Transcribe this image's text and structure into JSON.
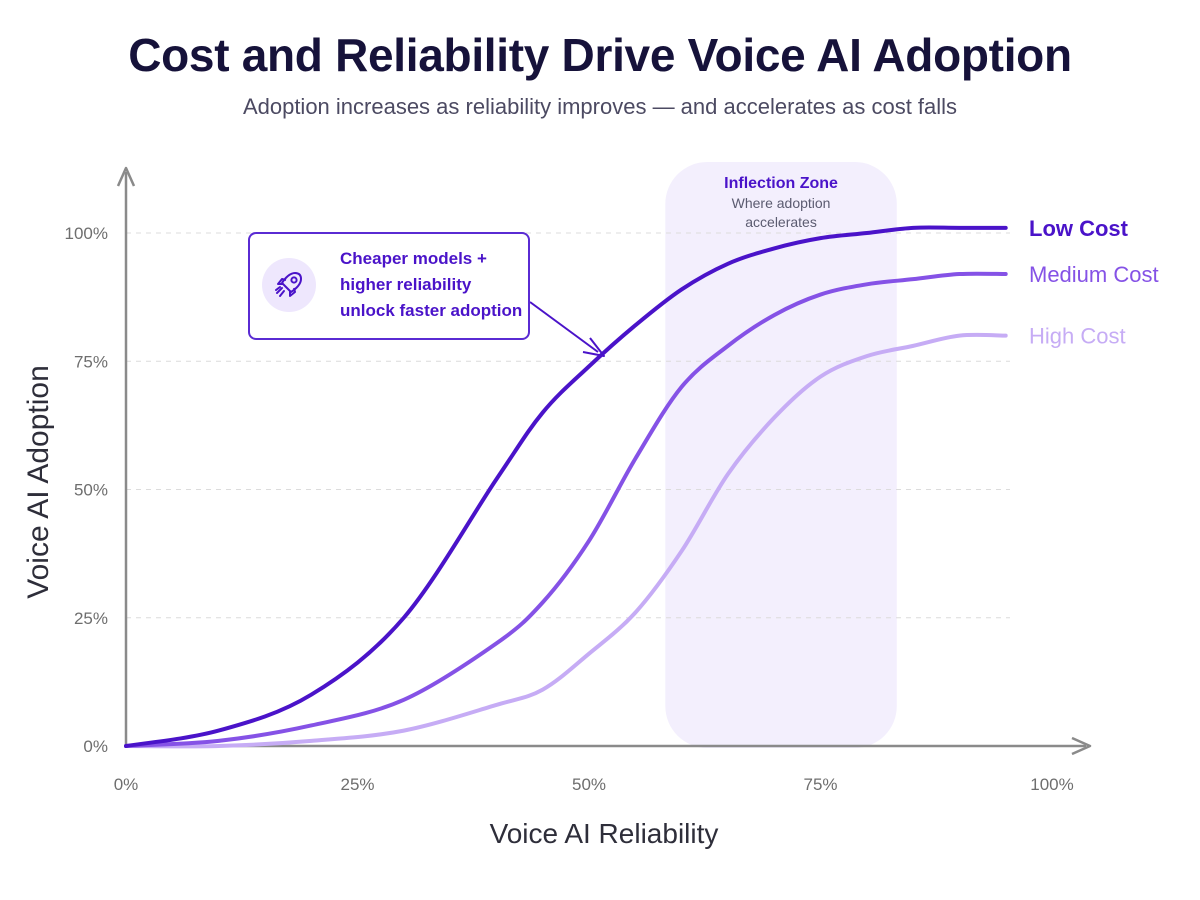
{
  "header": {
    "title": "Cost and Reliability Drive Voice AI Adoption",
    "subtitle": "Adoption increases as reliability improves — and accelerates as cost falls"
  },
  "callout": {
    "icon": "rocket-icon",
    "lines": [
      "Cheaper models +",
      "higher reliability",
      "unlock faster adoption"
    ]
  },
  "colors": {
    "low_cost": "#4a13c9",
    "medium_cost": "#8552e6",
    "high_cost": "#c6acf5",
    "inflection_zone": "#f3effd",
    "axis": "#8a8a8a"
  },
  "chart_data": {
    "type": "line",
    "title": "Cost and Reliability Drive Voice AI Adoption",
    "subtitle": "Adoption increases as reliability improves — and accelerates as cost falls",
    "xlabel": "Voice AI Reliability",
    "ylabel": "Voice AI Adoption",
    "xlim": [
      0,
      100
    ],
    "ylim": [
      0,
      100
    ],
    "x_ticks": [
      "0%",
      "25%",
      "50%",
      "75%",
      "100%"
    ],
    "y_ticks": [
      "0%",
      "25%",
      "50%",
      "75%",
      "100%"
    ],
    "grid": "horizontal dashed",
    "legend_placement": "right, at line ends",
    "x": [
      0,
      10,
      20,
      30,
      40,
      45,
      50,
      55,
      60,
      65,
      70,
      75,
      80,
      85,
      90,
      95
    ],
    "series": [
      {
        "name": "Low Cost",
        "values": [
          0,
          3,
          10,
          25,
          52,
          65,
          74,
          82,
          89,
          94,
          97,
          99,
          100,
          101,
          101,
          101
        ]
      },
      {
        "name": "Medium Cost",
        "values": [
          0,
          1,
          4,
          9,
          20,
          28,
          40,
          56,
          70,
          78,
          84,
          88,
          90,
          91,
          92,
          92
        ]
      },
      {
        "name": "High Cost",
        "values": [
          0,
          0,
          1,
          3,
          8,
          11,
          18,
          26,
          38,
          53,
          64,
          72,
          76,
          78,
          80,
          80
        ]
      }
    ],
    "annotations": [
      {
        "label": "Inflection Zone",
        "text": "Where adoption accelerates",
        "x_range": [
          55,
          80
        ]
      }
    ]
  }
}
